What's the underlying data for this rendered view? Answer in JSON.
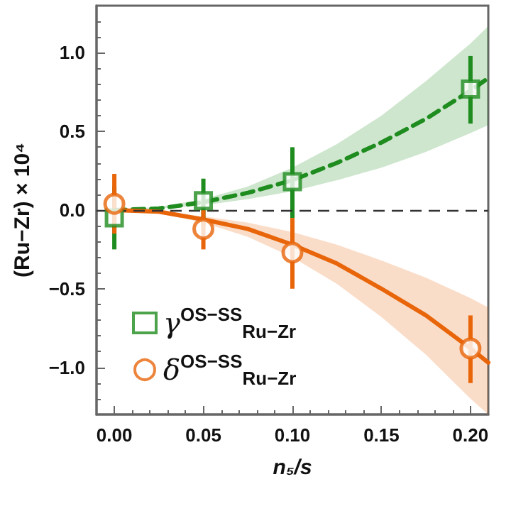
{
  "chart_data": {
    "type": "scatter",
    "xlabel": "n₅/s",
    "ylabel": "(Ru−Zr) × 10⁴",
    "xlim": [
      -0.01,
      0.21
    ],
    "ylim": [
      -1.3,
      1.3
    ],
    "xticks": [
      {
        "value": 0,
        "label": "0.00"
      },
      0.05,
      {
        "value": 0.1,
        "label": "0.10"
      },
      0.15,
      {
        "value": 0.2,
        "label": "0.20"
      }
    ],
    "yticks": [
      {
        "value": -1,
        "label": "−1.0"
      },
      {
        "value": -0.5,
        "label": "−0.5"
      },
      {
        "value": 0,
        "label": "0.0"
      },
      0.5,
      {
        "value": 1,
        "label": "1.0"
      }
    ],
    "grid": false,
    "legend": "bottom left",
    "ref_lines": [
      {
        "axis": "y",
        "value": 0,
        "color": "#333333",
        "line_style": "dashed"
      }
    ],
    "series": [
      {
        "type": "line",
        "color": "#1f8c1f",
        "line_style": "dashed",
        "marker": "none",
        "x": [
          0,
          0.025,
          0.05,
          0.075,
          0.1,
          0.125,
          0.15,
          0.175,
          0.2,
          0.21
        ],
        "values": [
          0,
          0.01,
          0.05,
          0.11,
          0.19,
          0.3,
          0.43,
          0.58,
          0.76,
          0.84
        ],
        "lower": [
          0,
          0.01,
          0.03,
          0.07,
          0.12,
          0.19,
          0.27,
          0.37,
          0.49,
          0.54
        ],
        "upper": [
          0,
          0.02,
          0.07,
          0.15,
          0.27,
          0.42,
          0.6,
          0.82,
          1.06,
          1.17
        ]
      },
      {
        "type": "line",
        "color": "#e8650a",
        "line_style": "solid",
        "marker": "none",
        "x": [
          0,
          0.025,
          0.05,
          0.075,
          0.1,
          0.125,
          0.15,
          0.175,
          0.2,
          0.21
        ],
        "values": [
          0,
          -0.01,
          -0.06,
          -0.12,
          -0.22,
          -0.34,
          -0.5,
          -0.67,
          -0.88,
          -0.97
        ],
        "lower": [
          0,
          -0.02,
          -0.08,
          -0.17,
          -0.3,
          -0.47,
          -0.68,
          -0.92,
          -1.2,
          -1.3
        ],
        "upper": [
          0,
          -0.01,
          -0.04,
          -0.08,
          -0.14,
          -0.22,
          -0.32,
          -0.43,
          -0.56,
          -0.62
        ]
      },
      {
        "name": "γ$^{OS−SS}$$_{Ru−Zr}$",
        "color": "#1f8c1f",
        "marker": "square",
        "x": [
          0,
          0.05,
          0.1,
          0.2
        ],
        "values": [
          -0.05,
          0.06,
          0.18,
          0.77
        ],
        "errors": [
          [
            -0.25,
            0.15
          ],
          [
            -0.1,
            0.2
          ],
          [
            -0.05,
            0.4
          ],
          [
            0.55,
            0.98
          ]
        ]
      },
      {
        "name": "δ$^{OS−SS}$$_{Ru−Zr}$",
        "color": "#e8650a",
        "marker": "circle",
        "x": [
          0,
          0.05,
          0.1,
          0.2
        ],
        "values": [
          0.04,
          -0.12,
          -0.27,
          -0.88
        ],
        "errors": [
          [
            -0.15,
            0.23
          ],
          [
            -0.25,
            0.0
          ],
          [
            -0.5,
            -0.05
          ],
          [
            -1.1,
            -0.67
          ]
        ]
      }
    ]
  }
}
